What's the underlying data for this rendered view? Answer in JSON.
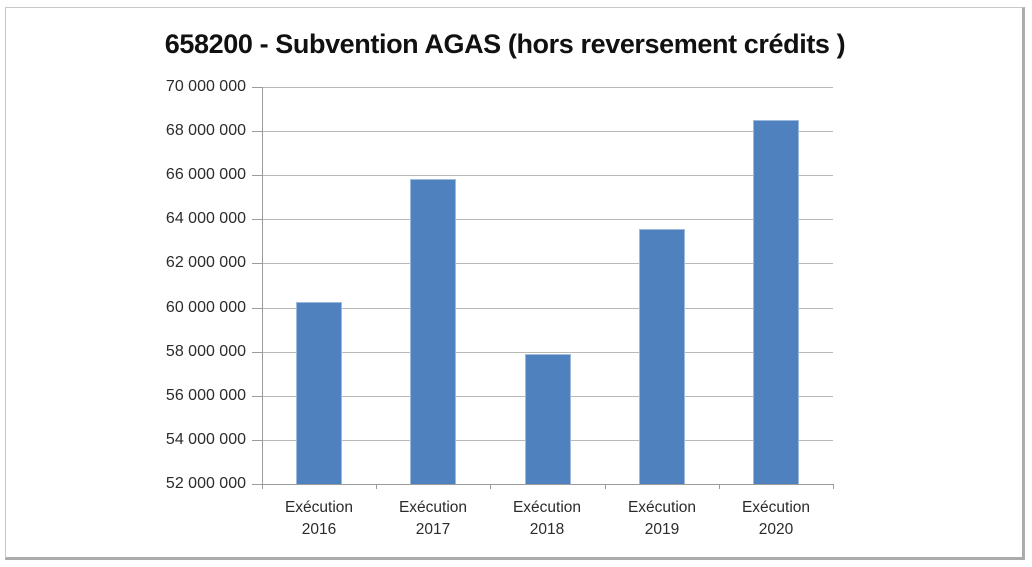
{
  "frame": {
    "border_color": "#c8c8c8",
    "shadow_color": "#ababab"
  },
  "chart_data": {
    "type": "bar",
    "title": "658200 - Subvention AGAS (hors reversement crédits )",
    "categories": [
      "Exécution 2016",
      "Exécution 2017",
      "Exécution 2018",
      "Exécution 2019",
      "Exécution 2020"
    ],
    "values": [
      60250000,
      65850000,
      57900000,
      63550000,
      68500000
    ],
    "ylim": [
      52000000,
      70000000
    ],
    "ytick_step": 2000000,
    "ytick_labels": [
      "52 000 000",
      "54 000 000",
      "56 000 000",
      "58 000 000",
      "60 000 000",
      "62 000 000",
      "64 000 000",
      "66 000 000",
      "68 000 000",
      "70 000 000"
    ],
    "xlabel": "",
    "ylabel": "",
    "grid": true,
    "legend": "none",
    "bar_color": "#4e81bd",
    "bar_border_color": "#9db9dc",
    "gridline_color": "#b8b8b8",
    "axis_color": "#9b9b9b",
    "text_color": "#2b2b2b",
    "title_color": "#111111"
  }
}
